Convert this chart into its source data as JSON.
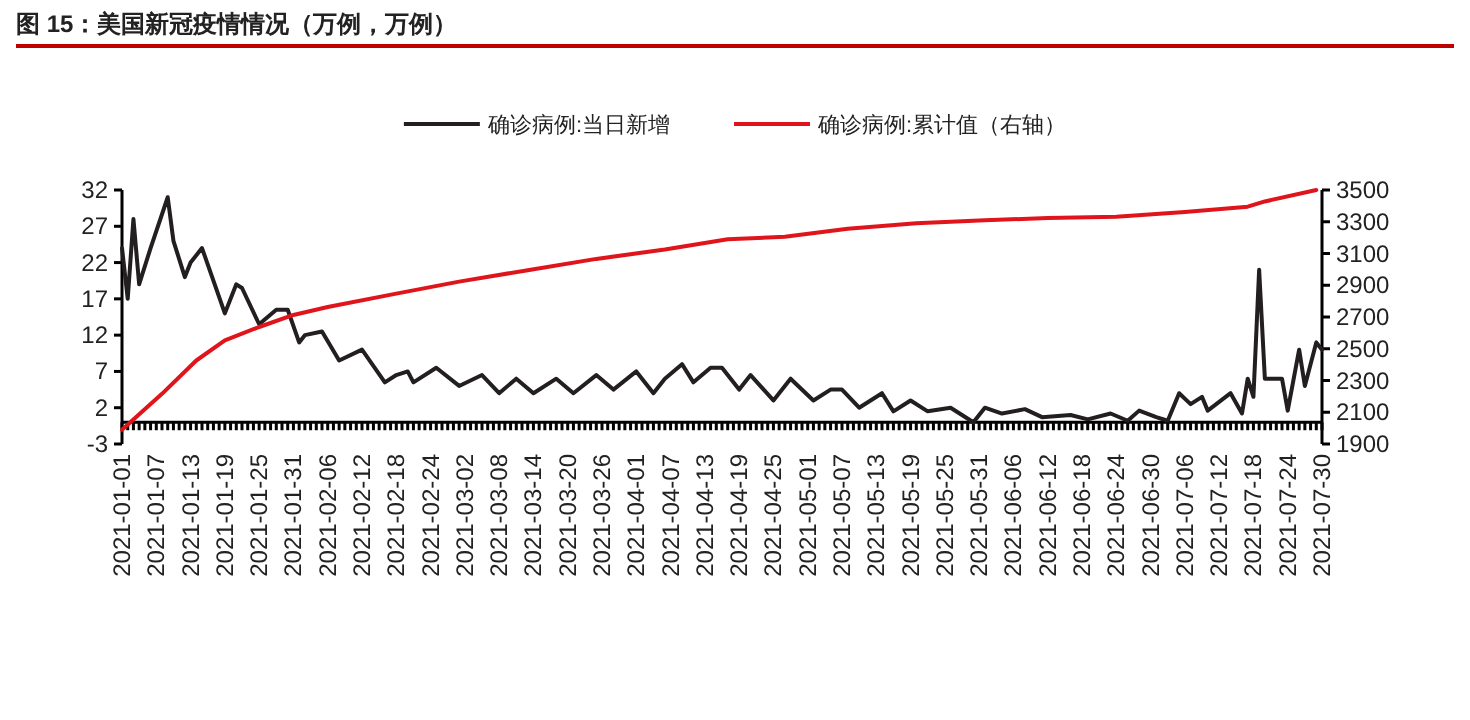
{
  "chart_data": {
    "type": "line",
    "title": "图 15：美国新冠疫情情况（万例，万例）",
    "xlim": [
      "2021-01-01",
      "2021-07-30"
    ],
    "xticks": [
      "2021-01-01",
      "2021-01-07",
      "2021-01-13",
      "2021-01-19",
      "2021-01-25",
      "2021-01-31",
      "2021-02-06",
      "2021-02-12",
      "2021-02-18",
      "2021-02-24",
      "2021-03-02",
      "2021-03-08",
      "2021-03-14",
      "2021-03-20",
      "2021-03-26",
      "2021-04-01",
      "2021-04-07",
      "2021-04-13",
      "2021-04-19",
      "2021-04-25",
      "2021-05-01",
      "2021-05-07",
      "2021-05-13",
      "2021-05-19",
      "2021-05-25",
      "2021-05-31",
      "2021-06-06",
      "2021-06-12",
      "2021-06-18",
      "2021-06-24",
      "2021-06-30",
      "2021-07-06",
      "2021-07-12",
      "2021-07-18",
      "2021-07-24",
      "2021-07-30"
    ],
    "ylim": [
      -3,
      32
    ],
    "yticks": [
      -3,
      2,
      7,
      12,
      17,
      22,
      27,
      32
    ],
    "y2lim": [
      1900,
      3500
    ],
    "y2ticks": [
      1900,
      2100,
      2300,
      2500,
      2700,
      2900,
      3100,
      3300,
      3500
    ],
    "legend": "top",
    "grid": false,
    "series": [
      {
        "name": "确诊病例:当日新增",
        "color": "#231f20",
        "x": [
          "2021-01-01",
          "2021-01-02",
          "2021-01-03",
          "2021-01-04",
          "2021-01-06",
          "2021-01-09",
          "2021-01-10",
          "2021-01-12",
          "2021-01-13",
          "2021-01-15",
          "2021-01-19",
          "2021-01-21",
          "2021-01-22",
          "2021-01-25",
          "2021-01-28",
          "2021-01-30",
          "2021-02-01",
          "2021-02-02",
          "2021-02-05",
          "2021-02-08",
          "2021-02-12",
          "2021-02-16",
          "2021-02-18",
          "2021-02-20",
          "2021-02-21",
          "2021-02-25",
          "2021-03-01",
          "2021-03-05",
          "2021-03-08",
          "2021-03-11",
          "2021-03-14",
          "2021-03-18",
          "2021-03-21",
          "2021-03-25",
          "2021-03-28",
          "2021-04-01",
          "2021-04-04",
          "2021-04-06",
          "2021-04-09",
          "2021-04-11",
          "2021-04-14",
          "2021-04-16",
          "2021-04-19",
          "2021-04-21",
          "2021-04-25",
          "2021-04-28",
          "2021-05-02",
          "2021-05-05",
          "2021-05-07",
          "2021-05-10",
          "2021-05-14",
          "2021-05-16",
          "2021-05-19",
          "2021-05-22",
          "2021-05-26",
          "2021-05-30",
          "2021-06-01",
          "2021-06-04",
          "2021-06-08",
          "2021-06-11",
          "2021-06-16",
          "2021-06-19",
          "2021-06-23",
          "2021-06-26",
          "2021-06-28",
          "2021-07-01",
          "2021-07-03",
          "2021-07-05",
          "2021-07-07",
          "2021-07-09",
          "2021-07-10",
          "2021-07-14",
          "2021-07-16",
          "2021-07-17",
          "2021-07-18",
          "2021-07-19",
          "2021-07-20",
          "2021-07-23",
          "2021-07-24",
          "2021-07-26",
          "2021-07-27",
          "2021-07-29",
          "2021-07-30"
        ],
        "values": [
          24,
          17,
          28,
          19,
          24,
          31,
          25,
          20,
          22,
          24,
          15,
          19,
          18.5,
          13.5,
          15.5,
          15.5,
          11,
          12,
          12.5,
          8.5,
          10,
          5.5,
          6.5,
          7,
          5.5,
          7.5,
          5,
          6.5,
          4,
          6,
          4,
          6,
          4,
          6.5,
          4.5,
          7,
          4,
          6,
          8,
          5.5,
          7.5,
          7.5,
          4.5,
          6.5,
          3,
          6,
          3,
          4.5,
          4.5,
          2,
          4,
          1.5,
          3,
          1.5,
          2,
          0,
          2,
          1.2,
          1.8,
          0.7,
          1,
          0.4,
          1.2,
          0.2,
          1.6,
          0.7,
          0.2,
          4,
          2.5,
          3.5,
          1.6,
          4,
          1.2,
          6,
          3.5,
          21,
          6,
          6,
          1.6,
          10,
          5,
          11,
          10
        ]
      },
      {
        "name": "确诊病例:累计值（右轴）",
        "color": "#e0151b",
        "axis": "y2",
        "x": [
          "2021-01-01",
          "2021-01-08",
          "2021-01-14",
          "2021-01-19",
          "2021-01-25",
          "2021-01-31",
          "2021-02-06",
          "2021-02-18",
          "2021-03-01",
          "2021-03-13",
          "2021-03-25",
          "2021-04-06",
          "2021-04-17",
          "2021-04-27",
          "2021-05-08",
          "2021-05-20",
          "2021-06-01",
          "2021-06-12",
          "2021-06-24",
          "2021-07-06",
          "2021-07-17",
          "2021-07-20",
          "2021-07-29"
        ],
        "values": [
          1990,
          2216,
          2426,
          2553,
          2637,
          2713,
          2763,
          2847,
          2923,
          2995,
          3066,
          3125,
          3190,
          3205,
          3256,
          3290,
          3310,
          3323,
          3332,
          3361,
          3395,
          3428,
          3500
        ]
      }
    ]
  }
}
